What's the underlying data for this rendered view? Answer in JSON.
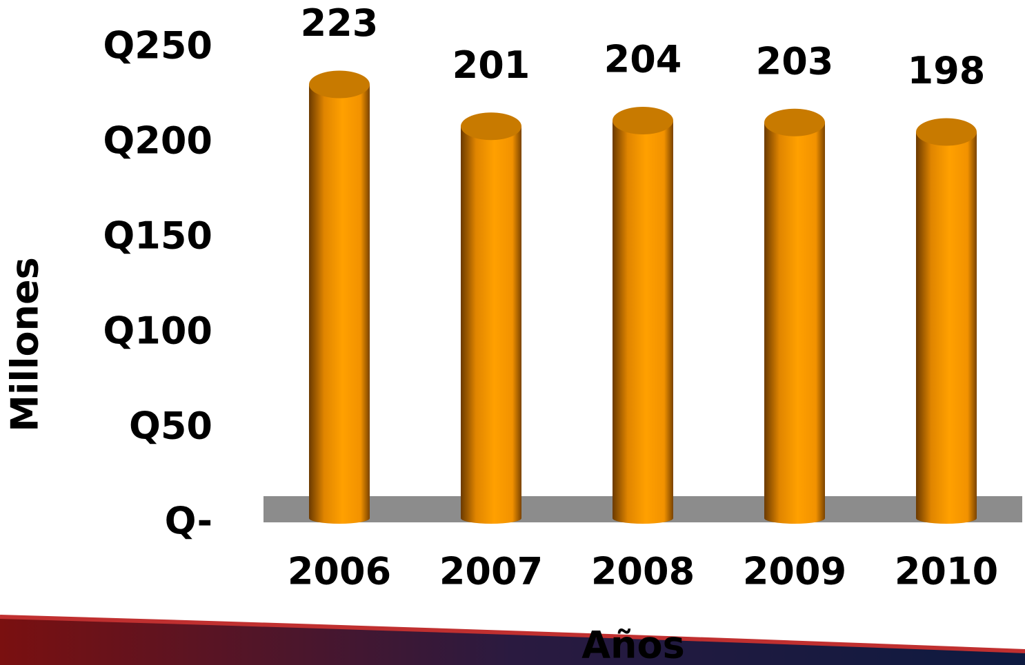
{
  "chart_data": {
    "type": "bar",
    "categories": [
      "2006",
      "2007",
      "2008",
      "2009",
      "2010"
    ],
    "values": [
      223,
      201,
      204,
      203,
      198
    ],
    "color": "#ff9900",
    "ylabel": "Millones",
    "xlabel": "Años",
    "ylim": [
      0,
      250
    ],
    "yticks": [
      {
        "value": 0,
        "label": "Q-"
      },
      {
        "value": 50,
        "label": "Q50"
      },
      {
        "value": 100,
        "label": "Q100"
      },
      {
        "value": 150,
        "label": "Q150"
      },
      {
        "value": 200,
        "label": "Q200"
      },
      {
        "value": 250,
        "label": "Q250"
      }
    ]
  }
}
